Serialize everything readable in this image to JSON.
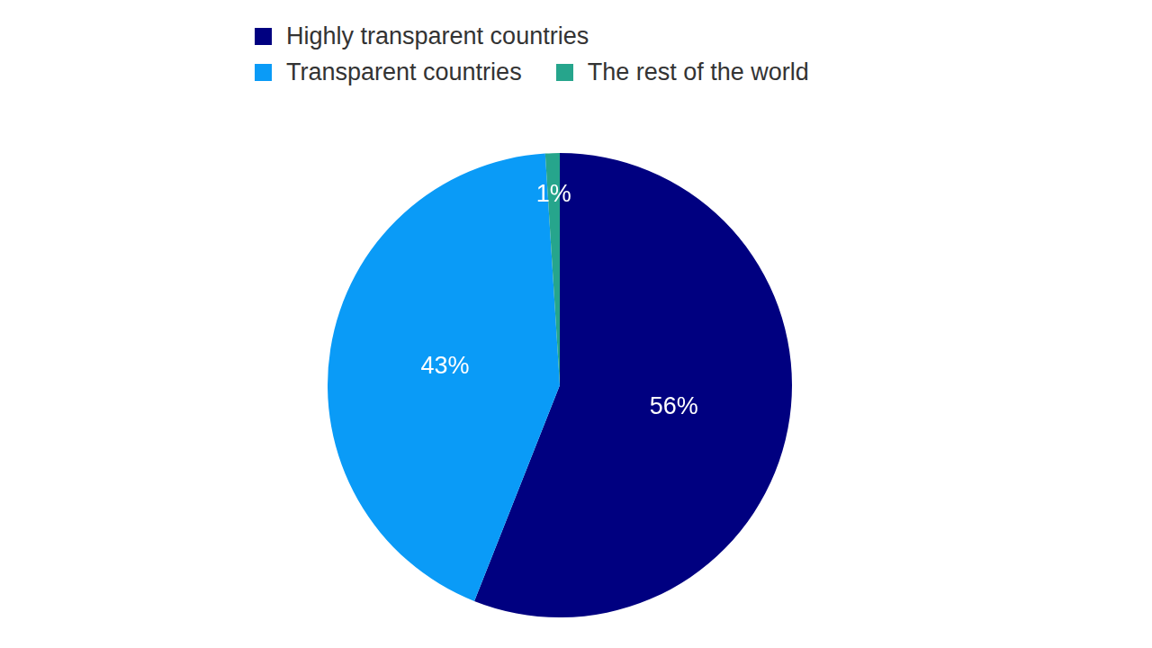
{
  "chart_data": {
    "type": "pie",
    "categories": [
      "Highly transparent countries",
      "Transparent countries",
      "The rest of the world"
    ],
    "values": [
      56,
      43,
      1
    ],
    "value_labels": [
      "56%",
      "43%",
      "1%"
    ],
    "colors": [
      "#000080",
      "#0a9bf7",
      "#26a58c"
    ],
    "data_labels": true,
    "legend": "top"
  }
}
